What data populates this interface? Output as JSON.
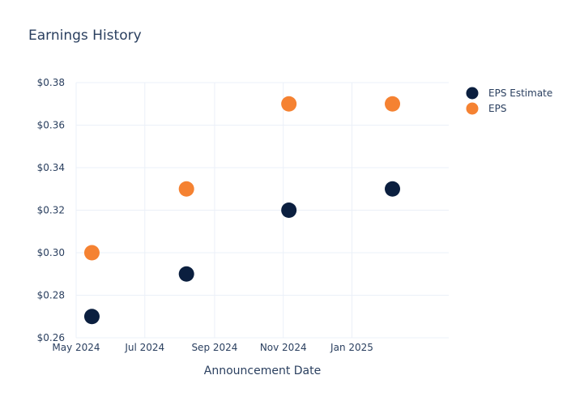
{
  "chart_data": {
    "type": "scatter",
    "title": "Earnings History",
    "xlabel": "Announcement Date",
    "ylabel": "",
    "x_ticks": [
      {
        "date": "2024-05-01",
        "label": "May 2024"
      },
      {
        "date": "2024-07-01",
        "label": "Jul 2024"
      },
      {
        "date": "2024-09-01",
        "label": "Sep 2024"
      },
      {
        "date": "2024-11-01",
        "label": "Nov 2024"
      },
      {
        "date": "2025-01-01",
        "label": "Jan 2025"
      }
    ],
    "xlim": [
      "2024-05-01",
      "2025-03-28"
    ],
    "ylim": [
      0.26,
      0.38
    ],
    "y_ticks": [
      {
        "value": 0.26,
        "label": "$0.26"
      },
      {
        "value": 0.28,
        "label": "$0.28"
      },
      {
        "value": 0.3,
        "label": "$0.30"
      },
      {
        "value": 0.32,
        "label": "$0.32"
      },
      {
        "value": 0.34,
        "label": "$0.34"
      },
      {
        "value": 0.36,
        "label": "$0.36"
      },
      {
        "value": 0.38,
        "label": "$0.38"
      }
    ],
    "grid": true,
    "legend_position": "top-right",
    "series": [
      {
        "name": "EPS Estimate",
        "color": "#0b1f3f",
        "points": [
          {
            "x": "2024-05-15",
            "y": 0.27
          },
          {
            "x": "2024-08-07",
            "y": 0.29
          },
          {
            "x": "2024-11-06",
            "y": 0.32
          },
          {
            "x": "2025-02-06",
            "y": 0.33
          }
        ]
      },
      {
        "name": "EPS",
        "color": "#f58232",
        "points": [
          {
            "x": "2024-05-15",
            "y": 0.3
          },
          {
            "x": "2024-08-07",
            "y": 0.33
          },
          {
            "x": "2024-11-06",
            "y": 0.37
          },
          {
            "x": "2025-02-06",
            "y": 0.37
          }
        ]
      }
    ]
  }
}
